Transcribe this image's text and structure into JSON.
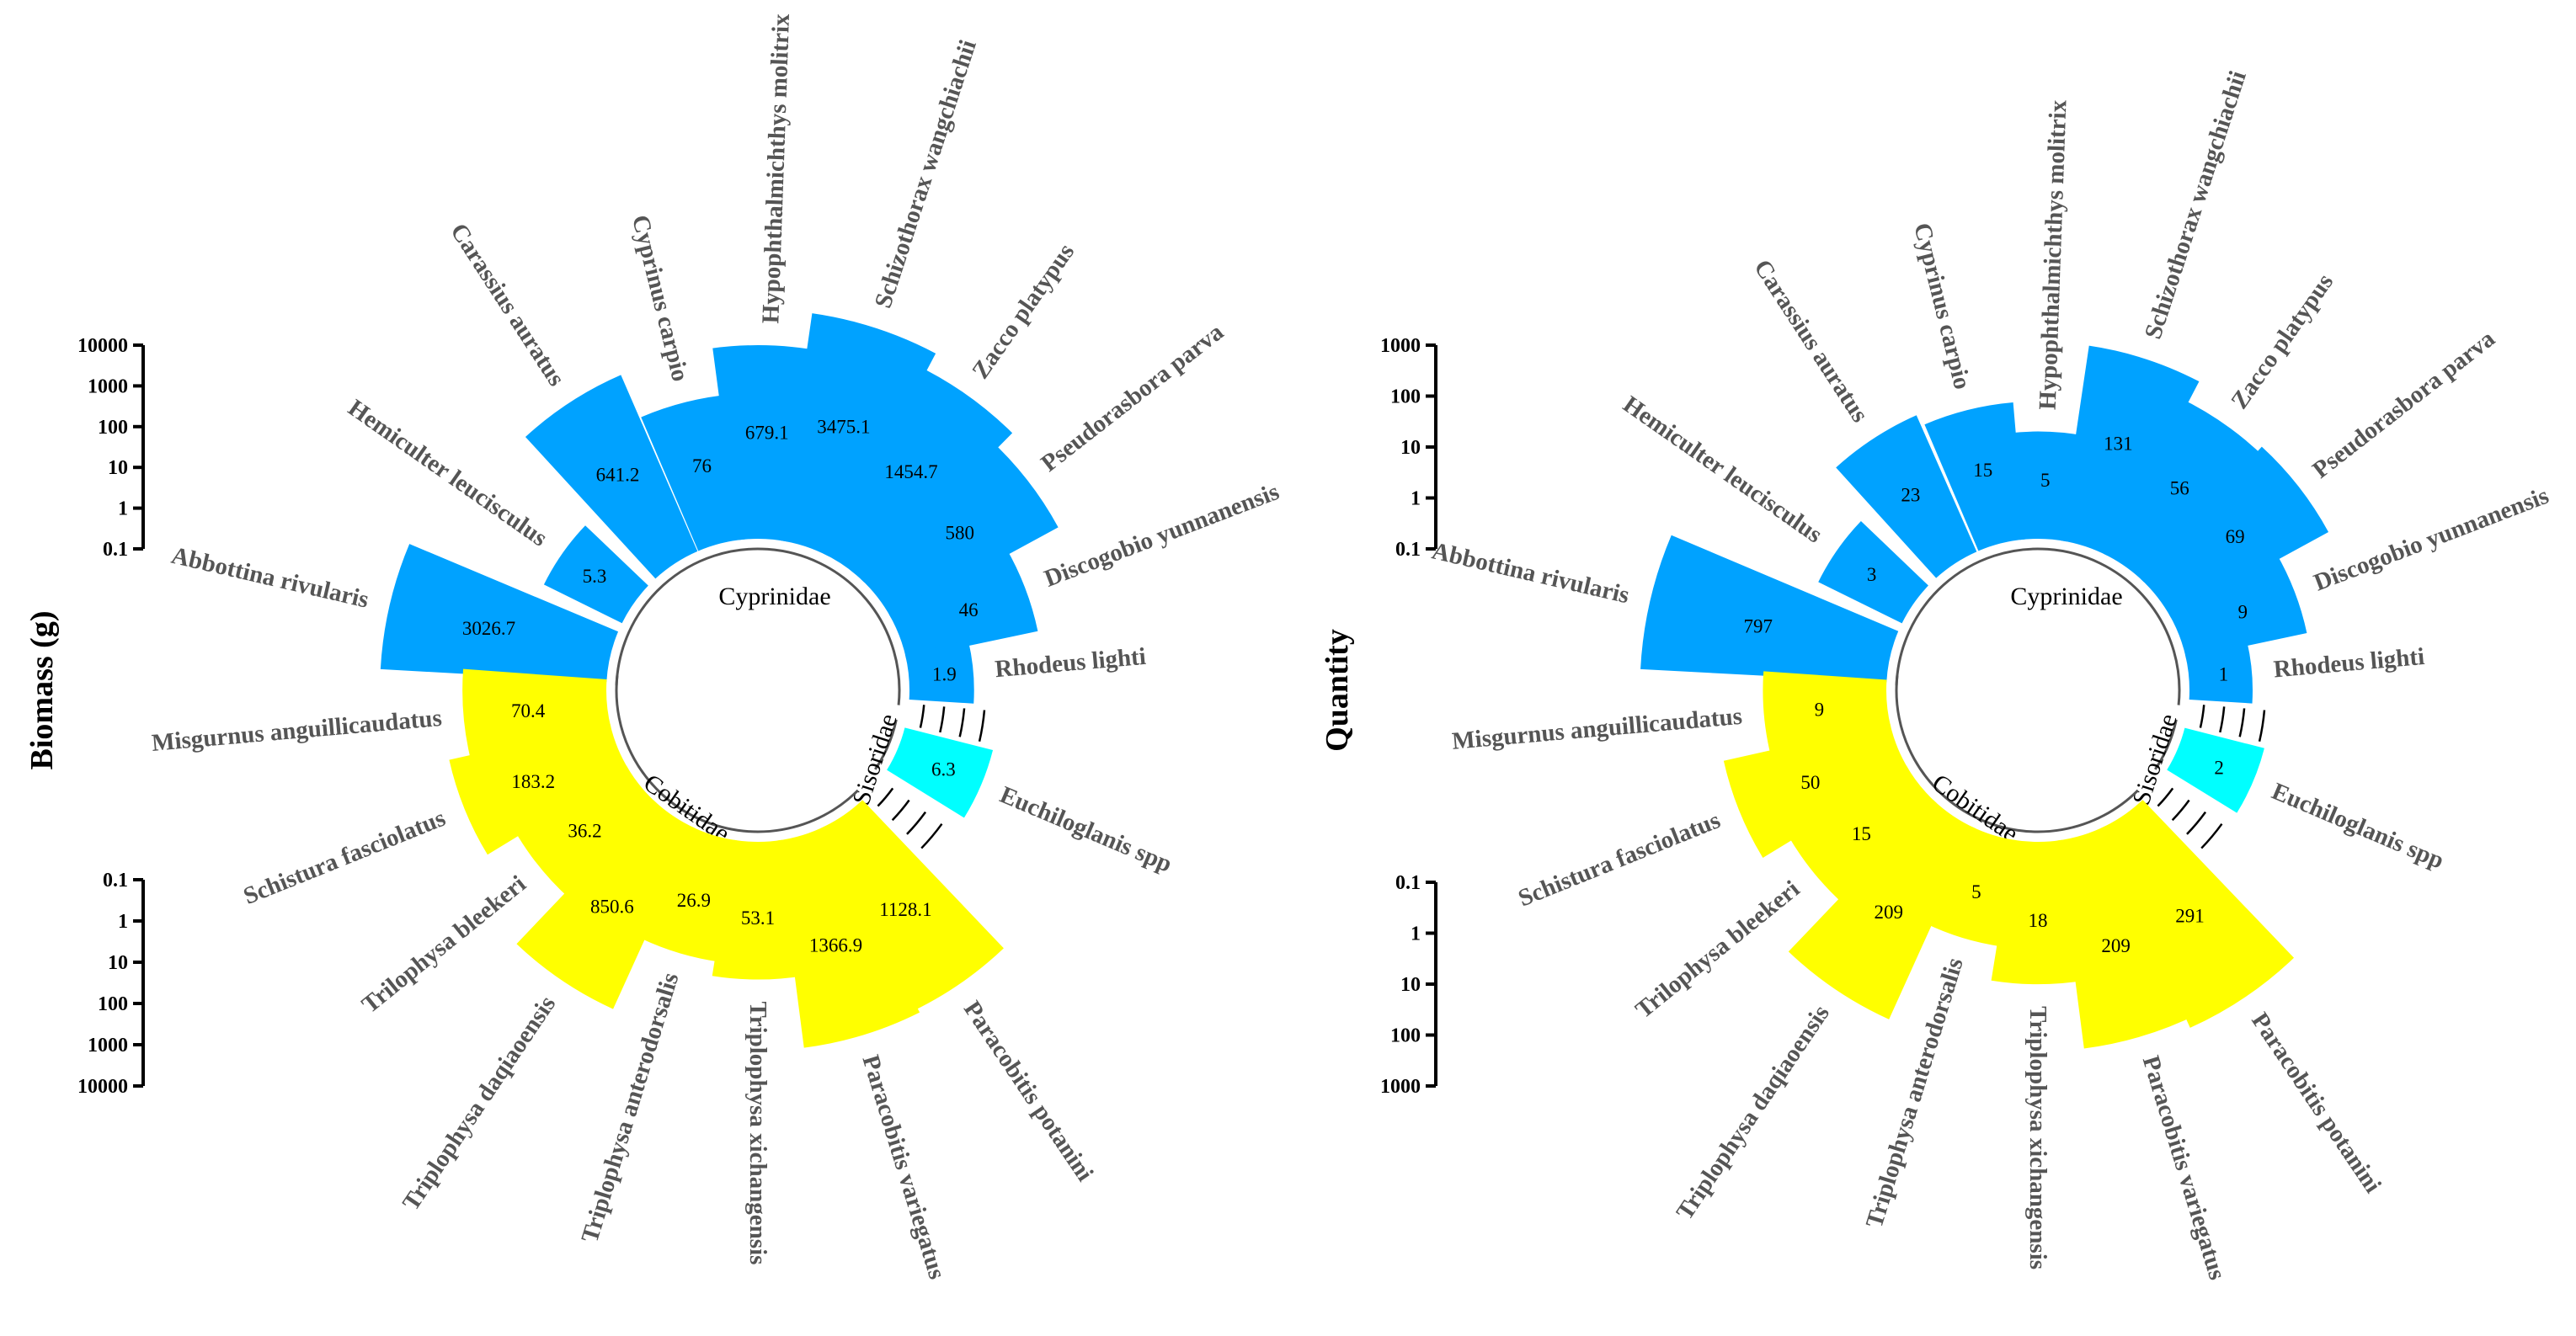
{
  "colors": {
    "Cyprinidae": "#00a2ff",
    "Cobitidae": "#ffff00",
    "Sisoridae": "#00ffff",
    "axis": "#000000",
    "species_label": "#555555"
  },
  "chart_data": [
    {
      "type": "circular-bar",
      "ylabel": "Biomass (g)",
      "scale": "log",
      "axis_ticks_top": [
        "10000",
        "1000",
        "100",
        "10",
        "1",
        "0.1"
      ],
      "axis_ticks_bottom": [
        "0.1",
        "1",
        "10",
        "100",
        "1000",
        "10000"
      ],
      "ylim": [
        0.1,
        10000
      ],
      "families": [
        "Cyprinidae",
        "Sisoridae",
        "Cobitidae"
      ],
      "species": [
        {
          "name": "Abbottina rivularis",
          "family": "Cyprinidae",
          "value": 3026.7,
          "label": "3026.7"
        },
        {
          "name": "Hemiculter leucisculus",
          "family": "Cyprinidae",
          "value": 5.3,
          "label": "5.3"
        },
        {
          "name": "Carassius auratus",
          "family": "Cyprinidae",
          "value": 641.2,
          "label": "641.2"
        },
        {
          "name": "Cyprinus carpio",
          "family": "Cyprinidae",
          "value": 76,
          "label": "76"
        },
        {
          "name": "Hypophthalmichthys molitrix",
          "family": "Cyprinidae",
          "value": 679.1,
          "label": "679.1"
        },
        {
          "name": "Schizothorax wangchiachii",
          "family": "Cyprinidae",
          "value": 3475.1,
          "label": "3475.1"
        },
        {
          "name": "Zacco platypus",
          "family": "Cyprinidae",
          "value": 1454.7,
          "label": "1454.7"
        },
        {
          "name": "Pseudorasbora parva",
          "family": "Cyprinidae",
          "value": 580,
          "label": "580"
        },
        {
          "name": "Discogobio yunnanensis",
          "family": "Cyprinidae",
          "value": 46,
          "label": "46"
        },
        {
          "name": "Rhodeus lighti",
          "family": "Cyprinidae",
          "value": 1.9,
          "label": "1.9"
        },
        {
          "name": "Euchiloglanis spp",
          "family": "Sisoridae",
          "value": 6.3,
          "label": "6.3"
        },
        {
          "name": "Paracobitis potanini",
          "family": "Cobitidae",
          "value": 1128.1,
          "label": "1128.1"
        },
        {
          "name": "Paracobitis variegatus",
          "family": "Cobitidae",
          "value": 1366.9,
          "label": "1366.9"
        },
        {
          "name": "Triplophysa xichangensis",
          "family": "Cobitidae",
          "value": 53.1,
          "label": "53.1"
        },
        {
          "name": "Triplophysa anterodorsalis",
          "family": "Cobitidae",
          "value": 26.9,
          "label": "26.9"
        },
        {
          "name": "Triplophysa daqiaoensis",
          "family": "Cobitidae",
          "value": 850.6,
          "label": "850.6"
        },
        {
          "name": "Trilophysa bleekeri",
          "family": "Cobitidae",
          "value": 36.2,
          "label": "36.2"
        },
        {
          "name": "Schistura fasciolatus",
          "family": "Cobitidae",
          "value": 183.2,
          "label": "183.2"
        },
        {
          "name": "Misgurnus anguillicaudatus",
          "family": "Cobitidae",
          "value": 70.4,
          "label": "70.4"
        }
      ]
    },
    {
      "type": "circular-bar",
      "ylabel": "Quantity",
      "scale": "log",
      "axis_ticks_top": [
        "1000",
        "100",
        "10",
        "1",
        "0.1"
      ],
      "axis_ticks_bottom": [
        "0.1",
        "1",
        "10",
        "100",
        "1000"
      ],
      "ylim": [
        0.1,
        1000
      ],
      "families": [
        "Cyprinidae",
        "Sisoridae",
        "Cobitidae"
      ],
      "species": [
        {
          "name": "Abbottina rivularis",
          "family": "Cyprinidae",
          "value": 797,
          "label": "797"
        },
        {
          "name": "Hemiculter leucisculus",
          "family": "Cyprinidae",
          "value": 3,
          "label": "3"
        },
        {
          "name": "Carassius auratus",
          "family": "Cyprinidae",
          "value": 23,
          "label": "23"
        },
        {
          "name": "Cyprinus carpio",
          "family": "Cyprinidae",
          "value": 15,
          "label": "15"
        },
        {
          "name": "Hypophthalmichthys molitrix",
          "family": "Cyprinidae",
          "value": 5,
          "label": "5"
        },
        {
          "name": "Schizothorax wangchiachii",
          "family": "Cyprinidae",
          "value": 131,
          "label": "131"
        },
        {
          "name": "Zacco platypus",
          "family": "Cyprinidae",
          "value": 56,
          "label": "56"
        },
        {
          "name": "Pseudorasbora parva",
          "family": "Cyprinidae",
          "value": 69,
          "label": "69"
        },
        {
          "name": "Discogobio yunnanensis",
          "family": "Cyprinidae",
          "value": 9,
          "label": "9"
        },
        {
          "name": "Rhodeus lighti",
          "family": "Cyprinidae",
          "value": 1,
          "label": "1"
        },
        {
          "name": "Euchiloglanis spp",
          "family": "Sisoridae",
          "value": 2,
          "label": "2"
        },
        {
          "name": "Paracobitis potanini",
          "family": "Cobitidae",
          "value": 291,
          "label": "291"
        },
        {
          "name": "Paracobitis variegatus",
          "family": "Cobitidae",
          "value": 209,
          "label": "209"
        },
        {
          "name": "Triplophysa xichangensis",
          "family": "Cobitidae",
          "value": 18,
          "label": "18"
        },
        {
          "name": "Triplophysa anterodorsalis",
          "family": "Cobitidae",
          "value": 5,
          "label": "5"
        },
        {
          "name": "Triplophysa daqiaoensis",
          "family": "Cobitidae",
          "value": 209,
          "label": "209"
        },
        {
          "name": "Trilophysa bleekeri",
          "family": "Cobitidae",
          "value": 15,
          "label": "15"
        },
        {
          "name": "Schistura fasciolatus",
          "family": "Cobitidae",
          "value": 50,
          "label": "50"
        },
        {
          "name": "Misgurnus anguillicaudatus",
          "family": "Cobitidae",
          "value": 9,
          "label": "9"
        }
      ]
    }
  ]
}
